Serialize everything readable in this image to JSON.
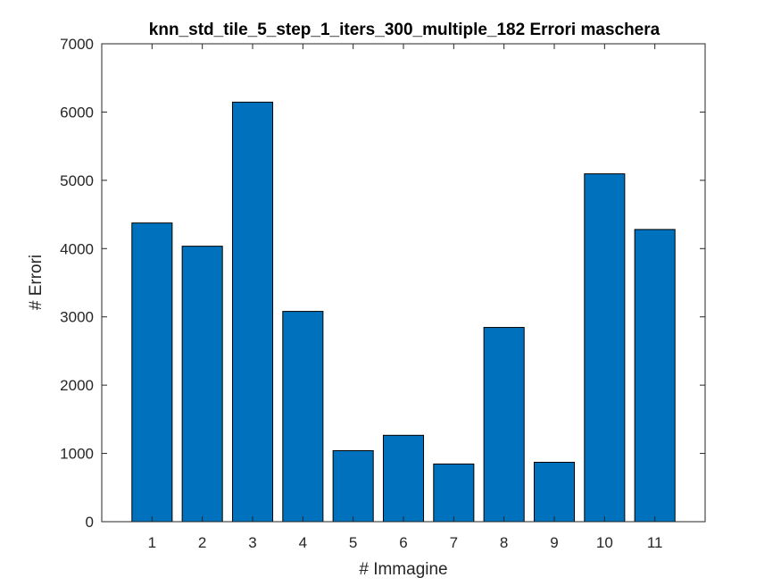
{
  "chart_data": {
    "type": "bar",
    "title": "knn_std_tile_5_step_1_iters_300_multiple_182 Errori maschera",
    "xlabel": "# Immagine",
    "ylabel": "# Errori",
    "categories": [
      "1",
      "2",
      "3",
      "4",
      "5",
      "6",
      "7",
      "8",
      "9",
      "10",
      "11"
    ],
    "values": [
      4375,
      4035,
      6145,
      3080,
      1040,
      1265,
      845,
      2845,
      870,
      5095,
      4280
    ],
    "ylim": [
      0,
      7000
    ],
    "yticks": [
      0,
      1000,
      2000,
      3000,
      4000,
      5000,
      6000,
      7000
    ],
    "bar_color": "#0072BD",
    "grid": false
  }
}
